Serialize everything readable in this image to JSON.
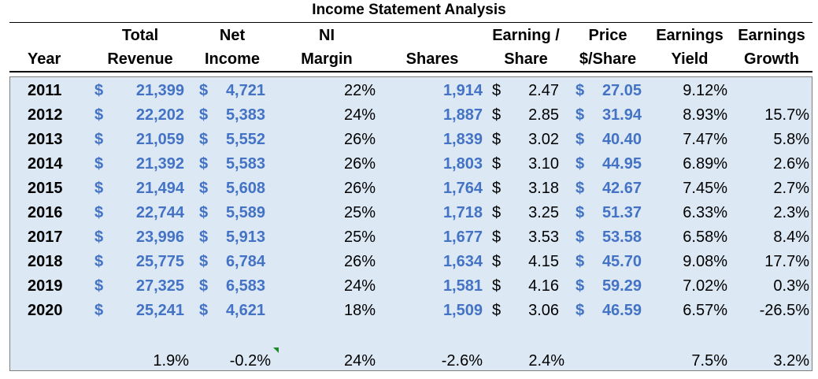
{
  "title": "Income Statement Analysis",
  "headers": {
    "year": [
      "",
      "Year"
    ],
    "revenue": [
      "Total",
      "Revenue"
    ],
    "net_income": [
      "Net",
      "Income"
    ],
    "ni_margin": [
      "NI",
      "Margin"
    ],
    "shares": [
      "",
      "Shares"
    ],
    "eps": [
      "Earning /",
      "Share"
    ],
    "price": [
      "Price",
      "$/Share"
    ],
    "yield": [
      "Earnings",
      "Yield"
    ],
    "growth": [
      "Earnings",
      "Growth"
    ]
  },
  "currency_symbol": "$",
  "rows": [
    {
      "year": "2011",
      "revenue": "21,399",
      "net_income": "4,721",
      "ni_margin": "22%",
      "shares": "1,914",
      "eps": "2.47",
      "price": "27.05",
      "yield": "9.12%",
      "growth": ""
    },
    {
      "year": "2012",
      "revenue": "22,202",
      "net_income": "5,383",
      "ni_margin": "24%",
      "shares": "1,887",
      "eps": "2.85",
      "price": "31.94",
      "yield": "8.93%",
      "growth": "15.7%"
    },
    {
      "year": "2013",
      "revenue": "21,059",
      "net_income": "5,552",
      "ni_margin": "26%",
      "shares": "1,839",
      "eps": "3.02",
      "price": "40.40",
      "yield": "7.47%",
      "growth": "5.8%"
    },
    {
      "year": "2014",
      "revenue": "21,392",
      "net_income": "5,583",
      "ni_margin": "26%",
      "shares": "1,803",
      "eps": "3.10",
      "price": "44.95",
      "yield": "6.89%",
      "growth": "2.6%"
    },
    {
      "year": "2015",
      "revenue": "21,494",
      "net_income": "5,608",
      "ni_margin": "26%",
      "shares": "1,764",
      "eps": "3.18",
      "price": "42.67",
      "yield": "7.45%",
      "growth": "2.7%"
    },
    {
      "year": "2016",
      "revenue": "22,744",
      "net_income": "5,589",
      "ni_margin": "25%",
      "shares": "1,718",
      "eps": "3.25",
      "price": "51.37",
      "yield": "6.33%",
      "growth": "2.3%"
    },
    {
      "year": "2017",
      "revenue": "23,996",
      "net_income": "5,913",
      "ni_margin": "25%",
      "shares": "1,677",
      "eps": "3.53",
      "price": "53.58",
      "yield": "6.58%",
      "growth": "8.4%"
    },
    {
      "year": "2018",
      "revenue": "25,775",
      "net_income": "6,784",
      "ni_margin": "26%",
      "shares": "1,634",
      "eps": "4.15",
      "price": "45.70",
      "yield": "9.08%",
      "growth": "17.7%"
    },
    {
      "year": "2019",
      "revenue": "27,325",
      "net_income": "6,583",
      "ni_margin": "24%",
      "shares": "1,581",
      "eps": "4.16",
      "price": "59.29",
      "yield": "7.02%",
      "growth": "0.3%"
    },
    {
      "year": "2020",
      "revenue": "25,241",
      "net_income": "4,621",
      "ni_margin": "18%",
      "shares": "1,509",
      "eps": "3.06",
      "price": "46.59",
      "yield": "6.57%",
      "growth": "-26.5%"
    }
  ],
  "summary": {
    "revenue": "1.9%",
    "net_income": "-0.2%",
    "ni_margin": "24%",
    "shares": "-2.6%",
    "eps": "2.4%",
    "yield": "7.5%",
    "growth": "3.2%"
  },
  "colors": {
    "panel_fill": "#dce9f5",
    "blue_text": "#4472c4",
    "comment_flag": "#1e8a2e"
  }
}
